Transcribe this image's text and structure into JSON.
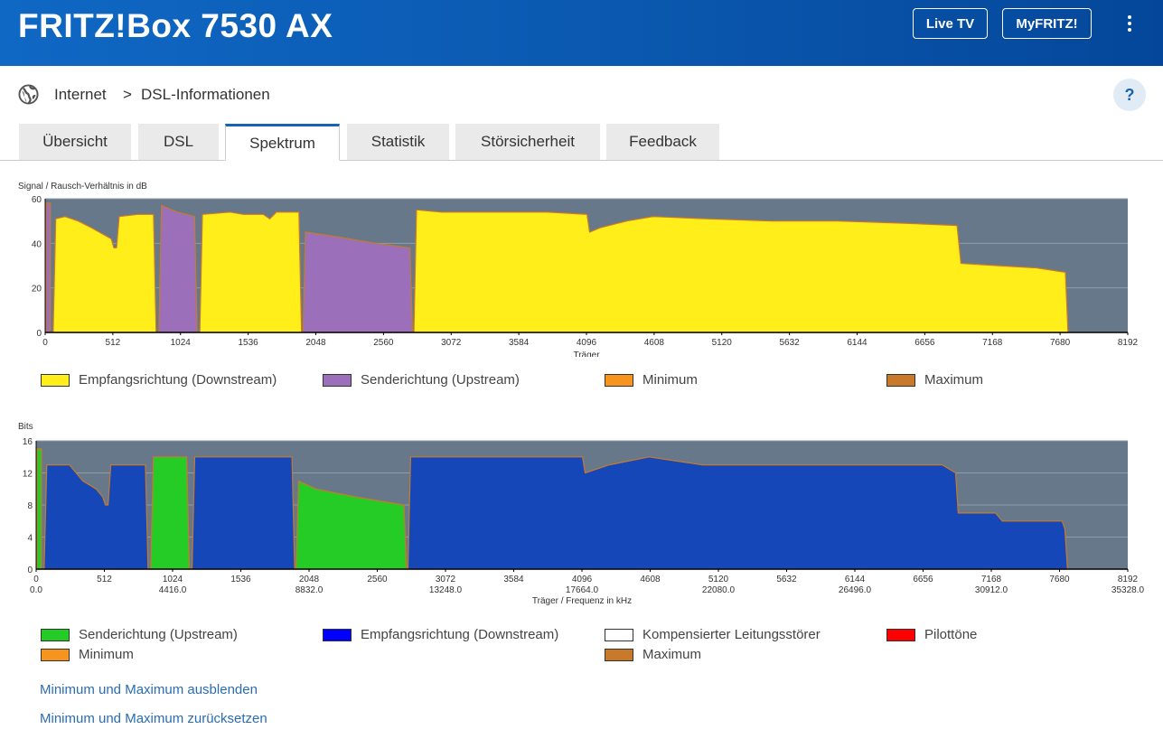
{
  "header": {
    "title": "FRITZ!Box 7530 AX",
    "live_tv": "Live TV",
    "myfritz": "MyFRITZ!"
  },
  "breadcrumb": {
    "root": "Internet",
    "sep": ">",
    "current": "DSL-Informationen"
  },
  "help": "?",
  "tabs": [
    {
      "label": "Übersicht"
    },
    {
      "label": "DSL"
    },
    {
      "label": "Spektrum",
      "active": true
    },
    {
      "label": "Statistik"
    },
    {
      "label": "Störsicherheit"
    },
    {
      "label": "Feedback"
    }
  ],
  "links": {
    "hide": "Minimum und Maximum ausblenden",
    "reset": "Minimum und Maximum zurücksetzen"
  },
  "chart_data": [
    {
      "type": "area",
      "ylabel": "Signal / Rausch-Verhältnis in dB",
      "xlabel": "Träger",
      "xlim": [
        0,
        8192
      ],
      "ylim": [
        0,
        60
      ],
      "xticks": [
        0,
        512,
        1024,
        1536,
        2048,
        2560,
        3072,
        3584,
        4096,
        4608,
        5120,
        5632,
        6144,
        6656,
        7168,
        7680,
        8192
      ],
      "yticks": [
        0,
        20,
        40,
        60
      ],
      "legend": [
        {
          "name": "Empfangsrichtung (Downstream)",
          "color": "#ffee1a"
        },
        {
          "name": "Senderichtung (Upstream)",
          "color": "#9b6fba"
        },
        {
          "name": "Minimum",
          "color": "#f7941d"
        },
        {
          "name": "Maximum",
          "color": "#c87a2a"
        }
      ],
      "series": [
        {
          "name": "Senderichtung (Upstream)",
          "color": "#9b6fba",
          "segments": [
            [
              [
                6,
                0
              ],
              [
                6,
                58
              ],
              [
                40,
                58
              ],
              [
                40,
                0
              ]
            ],
            [
              [
                860,
                0
              ],
              [
                880,
                57
              ],
              [
                1000,
                54
              ],
              [
                1130,
                52
              ],
              [
                1150,
                0
              ]
            ],
            [
              [
                1950,
                0
              ],
              [
                1970,
                45
              ],
              [
                2200,
                43
              ],
              [
                2500,
                40
              ],
              [
                2760,
                38
              ],
              [
                2780,
                0
              ]
            ]
          ]
        },
        {
          "name": "Empfangsrichtung (Downstream)",
          "color": "#ffee1a",
          "segments": [
            [
              [
                60,
                0
              ],
              [
                80,
                51
              ],
              [
                150,
                52
              ],
              [
                250,
                50
              ],
              [
                350,
                47
              ],
              [
                500,
                42
              ],
              [
                520,
                38
              ],
              [
                540,
                38
              ],
              [
                560,
                52
              ],
              [
                700,
                53
              ],
              [
                820,
                53
              ],
              [
                840,
                0
              ]
            ],
            [
              [
                1170,
                0
              ],
              [
                1190,
                53
              ],
              [
                1400,
                54
              ],
              [
                1500,
                53
              ],
              [
                1650,
                53
              ],
              [
                1700,
                51
              ],
              [
                1750,
                54
              ],
              [
                1920,
                54
              ],
              [
                1940,
                0
              ]
            ],
            [
              [
                2790,
                0
              ],
              [
                2810,
                55
              ],
              [
                3000,
                54
              ],
              [
                3400,
                54
              ],
              [
                3800,
                54
              ],
              [
                4100,
                53
              ],
              [
                4120,
                45
              ],
              [
                4200,
                47
              ],
              [
                4400,
                50
              ],
              [
                4600,
                52
              ],
              [
                5000,
                51
              ],
              [
                5500,
                50
              ],
              [
                6000,
                50
              ],
              [
                6500,
                49
              ],
              [
                6900,
                48
              ],
              [
                6930,
                31
              ],
              [
                7200,
                30
              ],
              [
                7500,
                29
              ],
              [
                7720,
                27
              ],
              [
                7740,
                0
              ]
            ]
          ]
        }
      ]
    },
    {
      "type": "area",
      "ylabel": "Bits",
      "xlabel": "Träger / Frequenz in kHz",
      "xlim": [
        0,
        8192
      ],
      "ylim": [
        0,
        16
      ],
      "xticks": [
        0,
        512,
        1024,
        1536,
        2048,
        2560,
        3072,
        3584,
        4096,
        4608,
        5120,
        5632,
        6144,
        6656,
        7168,
        7680,
        8192
      ],
      "xticks_freq": [
        "0.0",
        "4416.0",
        "8832.0",
        "13248.0",
        "17664.0",
        "22080.0",
        "26496.0",
        "30912.0",
        "35328.0"
      ],
      "yticks": [
        0,
        4,
        8,
        12,
        16
      ],
      "legend": [
        {
          "name": "Senderichtung (Upstream)",
          "color": "#26cc26"
        },
        {
          "name": "Empfangsrichtung (Downstream)",
          "color": "#0000ff"
        },
        {
          "name": "Kompensierter Leitungsstörer",
          "color": "#ffffff"
        },
        {
          "name": "Pilottöne",
          "color": "#ff0000"
        },
        {
          "name": "Minimum",
          "color": "#f7941d"
        },
        {
          "name": "Maximum",
          "color": "#c87a2a"
        }
      ],
      "series": [
        {
          "name": "Senderichtung (Upstream)",
          "color": "#26cc26",
          "segments": [
            [
              [
                6,
                0
              ],
              [
                6,
                15
              ],
              [
                40,
                15
              ],
              [
                40,
                0
              ]
            ],
            [
              [
                860,
                0
              ],
              [
                880,
                14
              ],
              [
                1130,
                14
              ],
              [
                1150,
                0
              ]
            ],
            [
              [
                1950,
                0
              ],
              [
                1970,
                11
              ],
              [
                2100,
                10
              ],
              [
                2400,
                9
              ],
              [
                2760,
                8
              ],
              [
                2780,
                0
              ]
            ]
          ]
        },
        {
          "name": "Empfangsrichtung (Downstream)",
          "color": "#1547b8",
          "segments": [
            [
              [
                60,
                0
              ],
              [
                80,
                13
              ],
              [
                250,
                13
              ],
              [
                350,
                11
              ],
              [
                450,
                10
              ],
              [
                500,
                9
              ],
              [
                520,
                8
              ],
              [
                540,
                8
              ],
              [
                560,
                13
              ],
              [
                700,
                13
              ],
              [
                820,
                13
              ],
              [
                840,
                0
              ]
            ],
            [
              [
                1170,
                0
              ],
              [
                1190,
                14
              ],
              [
                1500,
                14
              ],
              [
                1920,
                14
              ],
              [
                1940,
                0
              ]
            ],
            [
              [
                2790,
                0
              ],
              [
                2810,
                14
              ],
              [
                3400,
                14
              ],
              [
                4100,
                14
              ],
              [
                4120,
                12
              ],
              [
                4300,
                13
              ],
              [
                4600,
                14
              ],
              [
                5000,
                13
              ],
              [
                5600,
                13
              ],
              [
                6200,
                13
              ],
              [
                6800,
                13
              ],
              [
                6900,
                12
              ],
              [
                6920,
                7
              ],
              [
                7200,
                7
              ],
              [
                7250,
                6
              ],
              [
                7700,
                6
              ],
              [
                7720,
                5
              ],
              [
                7740,
                0
              ]
            ]
          ]
        }
      ]
    }
  ]
}
